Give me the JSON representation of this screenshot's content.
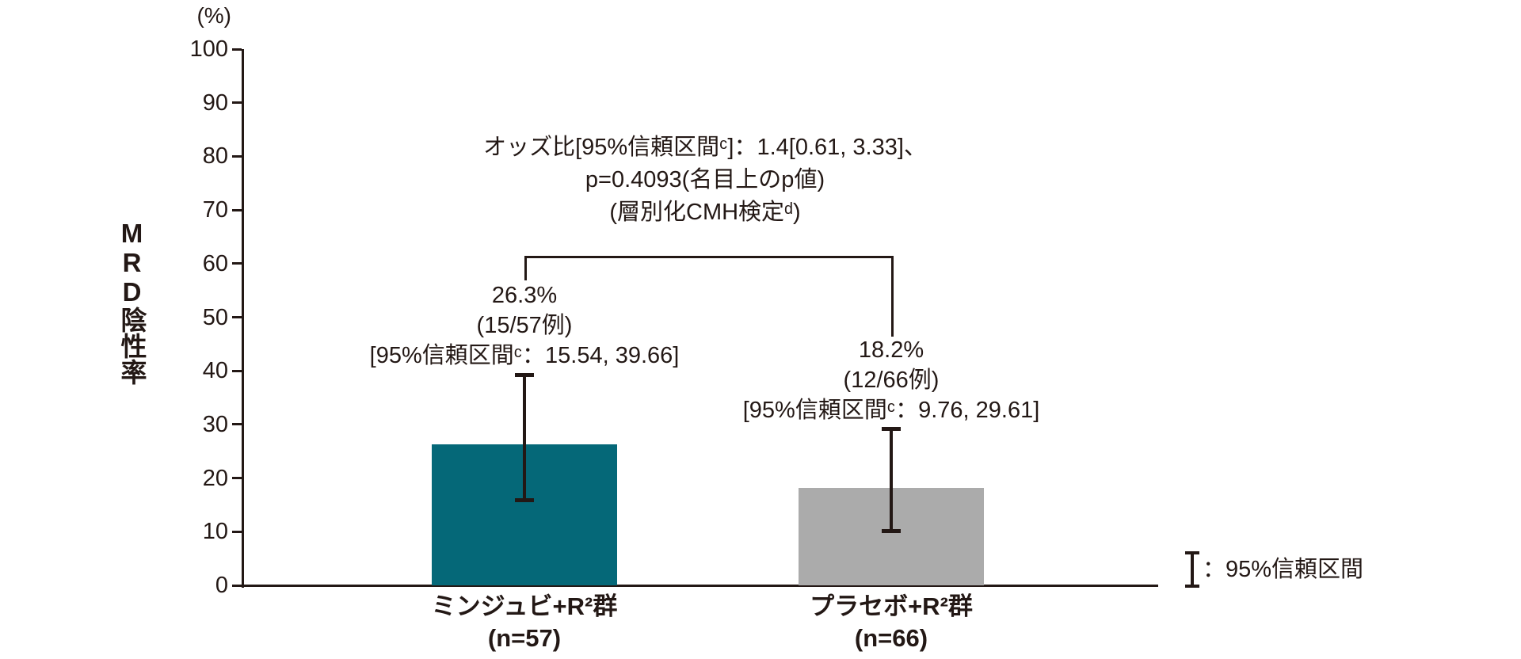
{
  "chart_data": {
    "type": "bar",
    "title": "",
    "categories": [
      "ミンジュビ+R²群",
      "プラセボ+R²群"
    ],
    "y_axis": {
      "unit_label": "(%)",
      "title": "MRD陰性率",
      "min": 0,
      "max": 100,
      "ticks": [
        0,
        10,
        20,
        30,
        40,
        50,
        60,
        70,
        80,
        90,
        100
      ]
    },
    "bars": [
      {
        "category": "ミンジュビ+R²群",
        "n_label": "(n=57)",
        "value": 26.3,
        "value_label": "26.3%",
        "fraction_label": "(15/57例)",
        "ci_low": 15.54,
        "ci_high": 39.66,
        "ci_label": "[95%信頼区間ᶜ：15.54, 39.66]",
        "color": "#056878"
      },
      {
        "category": "プラセボ+R²群",
        "n_label": "(n=66)",
        "value": 18.2,
        "value_label": "18.2%",
        "fraction_label": "(12/66例)",
        "ci_low": 9.76,
        "ci_high": 29.61,
        "ci_label": "[95%信頼区間ᶜ：9.76, 29.61]",
        "color": "#ababab"
      }
    ],
    "comparison_annotation": {
      "line1": "オッズ比[95%信頼区間ᶜ]：1.4[0.61, 3.33]、",
      "line2": "p=0.4093(名目上のp値)",
      "line3": "(層別化CMH検定ᵈ)"
    },
    "legend": {
      "icon": "error-bar-icon",
      "label": "：95%信頼区間"
    },
    "colors": {
      "bar_minjuvi": "#056878",
      "bar_placebo": "#ababab",
      "text_and_lines": "#231815"
    },
    "layout_hints": {
      "grid": false,
      "legend_position": "bottom-right",
      "error_bars": "95% CI"
    }
  }
}
